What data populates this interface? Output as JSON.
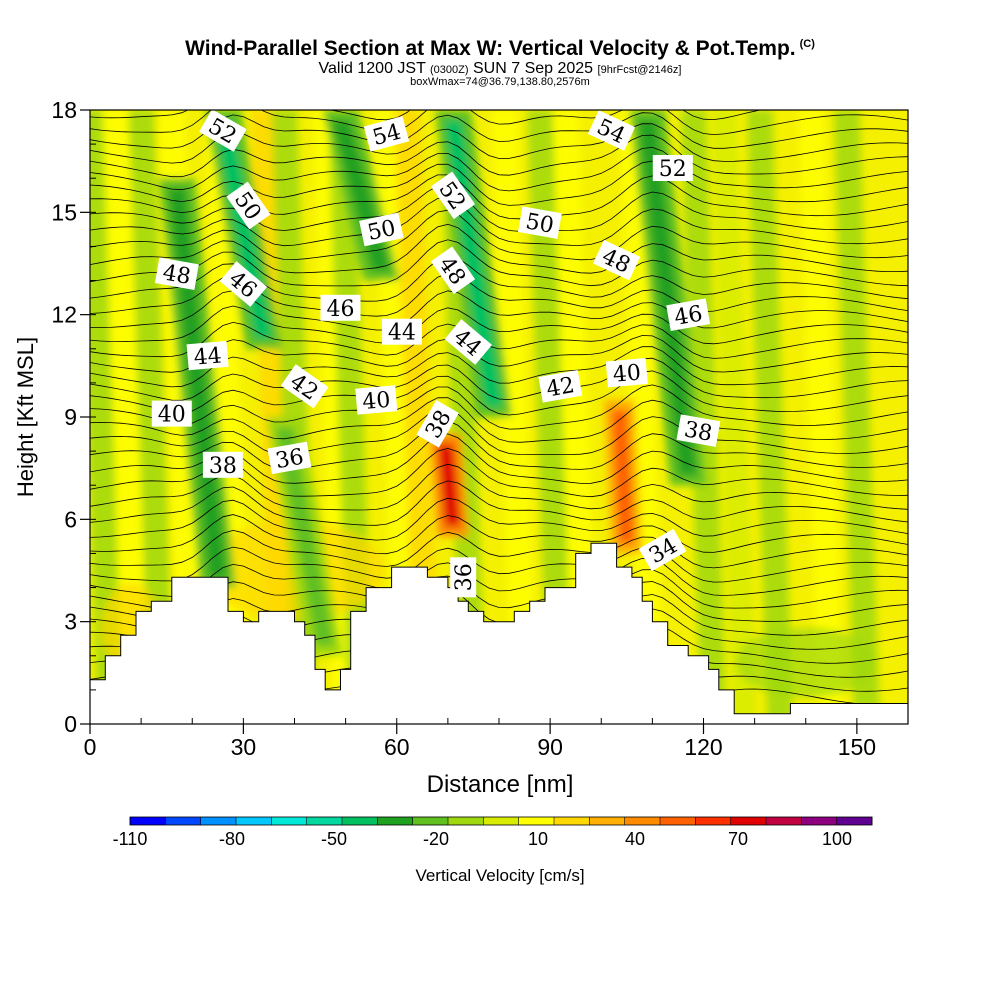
{
  "title": {
    "main": "Wind-Parallel Section at Max W: Vertical Velocity & Pot.Temp.",
    "copyright": "(C)",
    "valid_prefix": "Valid 1200 JST",
    "valid_utc": "(0300Z)",
    "valid_date": "SUN 7 Sep 2025",
    "forecast": "[9hrFcst@2146z]",
    "boxwmax": "boxWmax=74@36.79,138.80,2576m"
  },
  "chart_data": {
    "type": "heatmap",
    "xlabel": "Distance [nm]",
    "ylabel": "Height [Kft MSL]",
    "xlim": [
      0,
      160
    ],
    "ylim": [
      0,
      18
    ],
    "x_ticks": [
      "0",
      "30",
      "60",
      "90",
      "120",
      "150"
    ],
    "y_ticks": [
      "0",
      "3",
      "6",
      "9",
      "12",
      "15",
      "18"
    ],
    "colorbar": {
      "label": "Vertical Velocity [cm/s]",
      "tick_labels": [
        "-110",
        "-80",
        "-50",
        "-20",
        "10",
        "40",
        "70",
        "100"
      ],
      "colors": [
        "#0000ff",
        "#0048ff",
        "#0090ff",
        "#00c8ff",
        "#00e8d8",
        "#00d8a0",
        "#00c060",
        "#20a020",
        "#60c020",
        "#a0d810",
        "#d8ec00",
        "#ffff00",
        "#ffd800",
        "#ffb000",
        "#ff8c00",
        "#ff6000",
        "#ff3000",
        "#e00000",
        "#c00040",
        "#8c0080",
        "#600090"
      ]
    },
    "vertical_velocity_features": [
      {
        "x": 25,
        "y": [
          4,
          16
        ],
        "value": -30
      },
      {
        "x": 34,
        "y": [
          11,
          18
        ],
        "value": -40
      },
      {
        "x": 46,
        "y": [
          2,
          9
        ],
        "value": -20
      },
      {
        "x": 57,
        "y": [
          13,
          18
        ],
        "value": -30
      },
      {
        "x": 71,
        "y": [
          5.5,
          8.5
        ],
        "value": 74
      },
      {
        "x": 79,
        "y": [
          9,
          18
        ],
        "value": -40
      },
      {
        "x": 105,
        "y": [
          5,
          9.5
        ],
        "value": 60
      },
      {
        "x": 117,
        "y": [
          7,
          18
        ],
        "value": -35
      }
    ],
    "potential_temperature_labels": [
      {
        "text": "52",
        "x": 26,
        "y": 17.4,
        "angle": 30
      },
      {
        "text": "54",
        "x": 58,
        "y": 17.3,
        "angle": -15
      },
      {
        "text": "54",
        "x": 102,
        "y": 17.4,
        "angle": 25
      },
      {
        "text": "52",
        "x": 114,
        "y": 16.3,
        "angle": 0
      },
      {
        "text": "50",
        "x": 31,
        "y": 15.2,
        "angle": 55
      },
      {
        "text": "52",
        "x": 71,
        "y": 15.5,
        "angle": 55
      },
      {
        "text": "50",
        "x": 57,
        "y": 14.5,
        "angle": -12
      },
      {
        "text": "50",
        "x": 88,
        "y": 14.7,
        "angle": 10
      },
      {
        "text": "48",
        "x": 17,
        "y": 13.2,
        "angle": 10
      },
      {
        "text": "46",
        "x": 30,
        "y": 12.9,
        "angle": 40
      },
      {
        "text": "48",
        "x": 71,
        "y": 13.3,
        "angle": 55
      },
      {
        "text": "48",
        "x": 103,
        "y": 13.6,
        "angle": 25
      },
      {
        "text": "46",
        "x": 49,
        "y": 12.2,
        "angle": 0
      },
      {
        "text": "46",
        "x": 117,
        "y": 12.0,
        "angle": -10
      },
      {
        "text": "44",
        "x": 61,
        "y": 11.5,
        "angle": 0
      },
      {
        "text": "44",
        "x": 74,
        "y": 11.2,
        "angle": 40
      },
      {
        "text": "44",
        "x": 23,
        "y": 10.8,
        "angle": -5
      },
      {
        "text": "42",
        "x": 42,
        "y": 9.9,
        "angle": 35
      },
      {
        "text": "40",
        "x": 56,
        "y": 9.5,
        "angle": -5
      },
      {
        "text": "42",
        "x": 92,
        "y": 9.9,
        "angle": -10
      },
      {
        "text": "40",
        "x": 105,
        "y": 10.3,
        "angle": -5
      },
      {
        "text": "40",
        "x": 16,
        "y": 9.1,
        "angle": 0
      },
      {
        "text": "38",
        "x": 68,
        "y": 8.8,
        "angle": -60
      },
      {
        "text": "38",
        "x": 119,
        "y": 8.6,
        "angle": 10
      },
      {
        "text": "38",
        "x": 26,
        "y": 7.6,
        "angle": 0
      },
      {
        "text": "36",
        "x": 39,
        "y": 7.8,
        "angle": -10
      },
      {
        "text": "34",
        "x": 112,
        "y": 5.1,
        "angle": -30
      },
      {
        "text": "36",
        "x": 73,
        "y": 4.3,
        "angle": -90
      }
    ],
    "terrain": [
      {
        "x": 0,
        "h": 1.3
      },
      {
        "x": 3,
        "h": 2.0
      },
      {
        "x": 6,
        "h": 2.6
      },
      {
        "x": 9,
        "h": 3.3
      },
      {
        "x": 12,
        "h": 3.6
      },
      {
        "x": 16,
        "h": 4.3
      },
      {
        "x": 21,
        "h": 4.3
      },
      {
        "x": 24,
        "h": 4.3
      },
      {
        "x": 27,
        "h": 3.3
      },
      {
        "x": 30,
        "h": 3.0
      },
      {
        "x": 33,
        "h": 3.3
      },
      {
        "x": 37,
        "h": 3.3
      },
      {
        "x": 40,
        "h": 3.0
      },
      {
        "x": 42,
        "h": 2.6
      },
      {
        "x": 44,
        "h": 1.6
      },
      {
        "x": 46,
        "h": 1.0
      },
      {
        "x": 49,
        "h": 1.6
      },
      {
        "x": 51,
        "h": 3.3
      },
      {
        "x": 54,
        "h": 4.0
      },
      {
        "x": 59,
        "h": 4.6
      },
      {
        "x": 66,
        "h": 4.3
      },
      {
        "x": 70,
        "h": 4.0
      },
      {
        "x": 72,
        "h": 3.6
      },
      {
        "x": 74,
        "h": 3.3
      },
      {
        "x": 77,
        "h": 3.0
      },
      {
        "x": 80,
        "h": 3.0
      },
      {
        "x": 83,
        "h": 3.3
      },
      {
        "x": 86,
        "h": 3.6
      },
      {
        "x": 89,
        "h": 4.0
      },
      {
        "x": 95,
        "h": 5.0
      },
      {
        "x": 98,
        "h": 5.3
      },
      {
        "x": 103,
        "h": 4.6
      },
      {
        "x": 106,
        "h": 4.3
      },
      {
        "x": 108,
        "h": 3.6
      },
      {
        "x": 110,
        "h": 3.0
      },
      {
        "x": 113,
        "h": 2.3
      },
      {
        "x": 117,
        "h": 2.0
      },
      {
        "x": 121,
        "h": 1.6
      },
      {
        "x": 123,
        "h": 1.0
      },
      {
        "x": 126,
        "h": 0.3
      },
      {
        "x": 131,
        "h": 0.3
      },
      {
        "x": 137,
        "h": 0.6
      },
      {
        "x": 160,
        "h": 0.6
      }
    ]
  }
}
